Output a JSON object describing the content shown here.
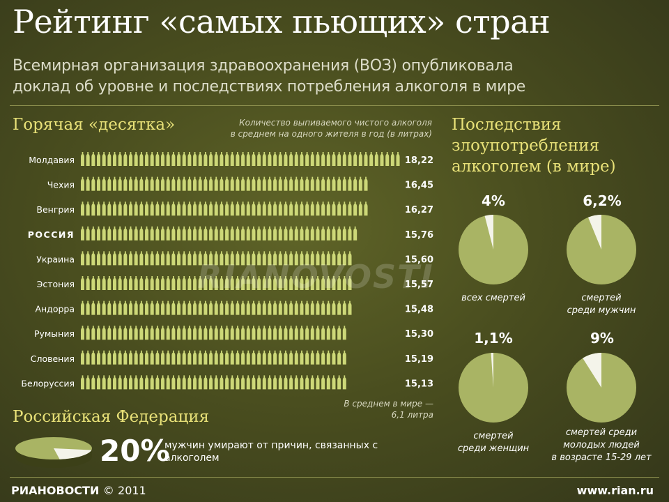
{
  "title": "Рейтинг «самых пьющих» стран",
  "subtitle_line1": "Всемирная организация здравоохранения (ВОЗ) опубликовала",
  "subtitle_line2": "доклад об уровне и последствиях потребления алкоголя в мире",
  "left_section_title": "Горячая «десятка»",
  "left_note_line1": "Количество выпиваемого чистого алкоголя",
  "left_note_line2": "в среднем на одного жителя в год (в литрах)",
  "world_avg_line1": "В среднем в мире —",
  "world_avg_line2": "6,1 литра",
  "right_section_title_line1": "Последствия",
  "right_section_title_line2": "злоупотребления",
  "right_section_title_line3": "алкоголем (в мире)",
  "rf_title": "Российская Федерация",
  "rf_percent": "20%",
  "rf_text": "мужчин умирают от причин, связанных с алкоголем",
  "watermark": "RIANOVOSTI",
  "footer_logo": "РИАНОВОСТИ",
  "footer_year": "© 2011",
  "footer_site": "www.rian.ru",
  "colors": {
    "bottle": "#cdd878",
    "highlight_label": "#ffffff",
    "pie_fill": "#a9b464",
    "pie_slice": "#f4f4ea",
    "section_title": "#e8e178"
  },
  "chart_data": [
    {
      "type": "bar",
      "categories": [
        "Молдавия",
        "Чехия",
        "Венгрия",
        "РОССИЯ",
        "Украина",
        "Эстония",
        "Андорра",
        "Румыния",
        "Словения",
        "Белоруссия"
      ],
      "values": [
        18.22,
        16.45,
        16.27,
        15.76,
        15.6,
        15.57,
        15.48,
        15.3,
        15.19,
        15.13
      ],
      "value_labels": [
        "18,22",
        "16,45",
        "16,27",
        "15,76",
        "15,60",
        "15,57",
        "15,48",
        "15,30",
        "15,19",
        "15,13"
      ],
      "highlighted": "РОССИЯ"
    },
    {
      "type": "pie",
      "items": [
        {
          "percent": 4,
          "label_text": "4%",
          "caption_lines": [
            "всех смертей"
          ]
        },
        {
          "percent": 6.2,
          "label_text": "6,2%",
          "caption_lines": [
            "смертей",
            "среди мужчин"
          ]
        },
        {
          "percent": 1.1,
          "label_text": "1,1%",
          "caption_lines": [
            "смертей",
            "среди женщин"
          ]
        },
        {
          "percent": 9,
          "label_text": "9%",
          "caption_lines": [
            "смертей среди",
            "молодых людей",
            "в возрасте 15-29 лет"
          ]
        }
      ]
    },
    {
      "type": "pie",
      "items": [
        {
          "percent": 20,
          "label_text": "20%"
        }
      ]
    }
  ]
}
